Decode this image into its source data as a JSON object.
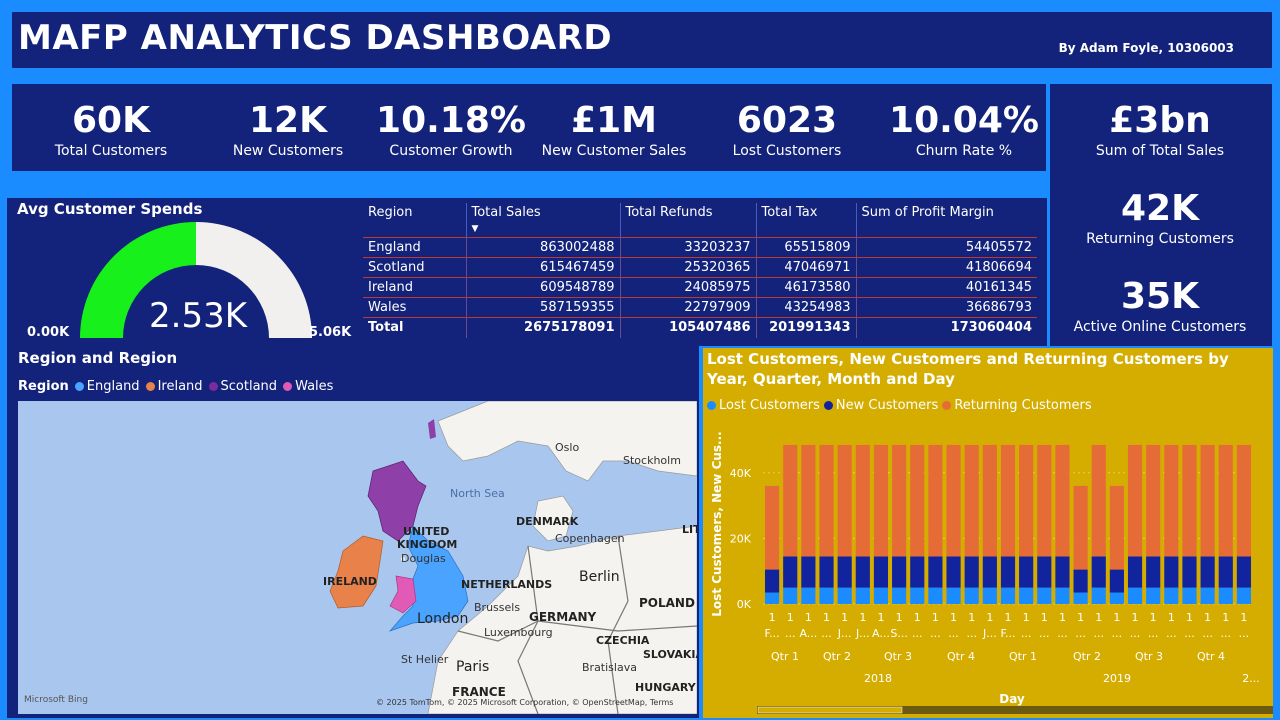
{
  "header": {
    "title": "MAFP ANALYTICS DASHBOARD",
    "byline": "By Adam Foyle, 10306003"
  },
  "kpis": [
    {
      "value": "60K",
      "label": "Total Customers"
    },
    {
      "value": "12K",
      "label": "New Customers"
    },
    {
      "value": "10.18%",
      "label": "Customer Growth"
    },
    {
      "value": "£1M",
      "label": "New Customer Sales"
    },
    {
      "value": "6023",
      "label": "Lost Customers"
    },
    {
      "value": "10.04%",
      "label": "Churn Rate %"
    }
  ],
  "right_kpis": [
    {
      "value": "£3bn",
      "label": "Sum of Total Sales"
    },
    {
      "value": "42K",
      "label": "Returning Customers"
    },
    {
      "value": "35K",
      "label": "Active Online Customers"
    }
  ],
  "gauge": {
    "title": "Avg Customer Spends",
    "value_label": "2.53K",
    "min_label": "0.00K",
    "max_label": "5.06K",
    "value": 2.53,
    "min": 0,
    "max": 5.06,
    "fill_color": "#18f01c",
    "track_color": "#f2f0ee"
  },
  "table": {
    "headers": [
      "Region",
      "Total Sales",
      "Total Refunds",
      "Total Tax",
      "Sum of Profit Margin"
    ],
    "rows": [
      [
        "England",
        "863002488",
        "33203237",
        "65515809",
        "54405572"
      ],
      [
        "Scotland",
        "615467459",
        "25320365",
        "47046971",
        "41806694"
      ],
      [
        "Ireland",
        "609548789",
        "24085975",
        "46173580",
        "40161345"
      ],
      [
        "Wales",
        "587159355",
        "22797909",
        "43254983",
        "36686793"
      ]
    ],
    "total": [
      "Total",
      "2675178091",
      "105407486",
      "201991343",
      "173060404"
    ]
  },
  "map": {
    "title": "Region and Region",
    "legend_title": "Region",
    "legend": [
      {
        "name": "England",
        "color": "#4aa3ff"
      },
      {
        "name": "Ireland",
        "color": "#e8824a"
      },
      {
        "name": "Scotland",
        "color": "#7a2d9a"
      },
      {
        "name": "Wales",
        "color": "#e05ab6"
      }
    ],
    "labels": {
      "oslo": "Oslo",
      "stockholm": "Stockholm",
      "north_sea": "North Sea",
      "denmark": "DENMARK",
      "copenhagen": "Copenhagen",
      "uk1": "UNITED",
      "uk2": "KINGDOM",
      "douglas": "Douglas",
      "ireland": "IRELAND",
      "netherlands": "NETHERLANDS",
      "berlin": "Berlin",
      "poland": "POLAND",
      "london": "London",
      "brussels": "Brussels",
      "germany": "GERMANY",
      "luxembourg": "Luxembourg",
      "czechia": "CZECHIA",
      "slovakia": "SLOVAKIA",
      "st_helier": "St Helier",
      "paris": "Paris",
      "bratislava": "Bratislava",
      "hungary": "HUNGARY",
      "france": "FRANCE",
      "lit": "LIT",
      "bing": "Microsoft Bing",
      "copyright": "© 2025 TomTom, © 2025 Microsoft Corporation, © OpenStreetMap, Terms"
    }
  },
  "chart_data": {
    "type": "bar",
    "title": "Lost Customers, New Customers and Returning Customers by Year, Quarter, Month and Day",
    "xlabel": "Day",
    "ylabel": "Lost Customers, New Cus...",
    "ylim": [
      0,
      50000
    ],
    "yticks": [
      "0K",
      "20K",
      "40K"
    ],
    "series": [
      {
        "name": "Lost Customers",
        "color": "#1a8cff",
        "values": [
          3500,
          5000,
          5000,
          5000,
          5000,
          5000,
          5000,
          5000,
          5000,
          5000,
          5000,
          5000,
          5000,
          5000,
          5000,
          5000,
          5000,
          3500,
          5000,
          3500,
          5000,
          5000,
          5000,
          5000,
          5000,
          5000,
          5000
        ]
      },
      {
        "name": "New Customers",
        "color": "#12239e",
        "values": [
          7000,
          9500,
          9500,
          9500,
          9500,
          9500,
          9500,
          9500,
          9500,
          9500,
          9500,
          9500,
          9500,
          9500,
          9500,
          9500,
          9500,
          7000,
          9500,
          7000,
          9500,
          9500,
          9500,
          9500,
          9500,
          9500,
          9500
        ]
      },
      {
        "name": "Returning Customers",
        "color": "#e66c37",
        "values": [
          25500,
          34000,
          34000,
          34000,
          34000,
          34000,
          34000,
          34000,
          34000,
          34000,
          34000,
          34000,
          34000,
          34000,
          34000,
          34000,
          34000,
          25500,
          34000,
          25500,
          34000,
          34000,
          34000,
          34000,
          34000,
          34000,
          34000
        ]
      }
    ],
    "day_labels": [
      "1",
      "1",
      "1",
      "1",
      "1",
      "1",
      "1",
      "1",
      "1",
      "1",
      "1",
      "1",
      "1",
      "1",
      "1",
      "1",
      "1",
      "1",
      "1",
      "1",
      "1",
      "1",
      "1",
      "1",
      "1",
      "1",
      "1"
    ],
    "month_labels": [
      "F...",
      "...",
      "A...",
      "...",
      "J...",
      "J...",
      "A...",
      "S...",
      "...",
      "...",
      "...",
      "...",
      "J...",
      "F...",
      "...",
      "...",
      "...",
      "...",
      "...",
      "...",
      "...",
      "...",
      "...",
      "...",
      "...",
      "...",
      "..."
    ],
    "quarters": [
      "Qtr 1",
      "Qtr 2",
      "Qtr 3",
      "Qtr 4",
      "Qtr 1",
      "Qtr 2",
      "Qtr 3",
      "Qtr 4"
    ],
    "years": [
      "2018",
      "2019",
      "2..."
    ]
  }
}
